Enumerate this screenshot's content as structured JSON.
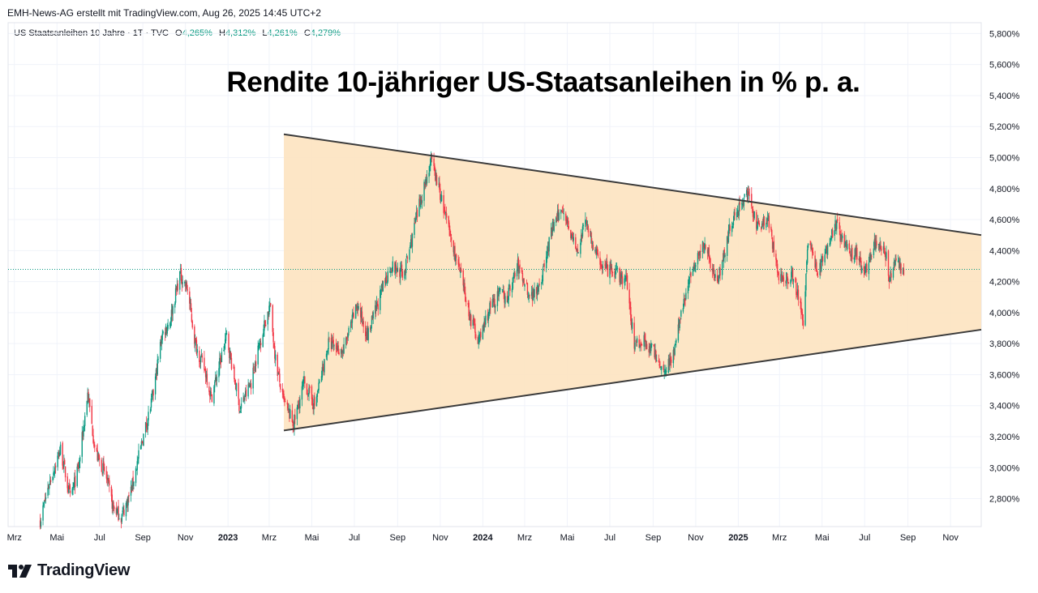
{
  "header": {
    "credit": "EMH-News-AG erstellt mit TradingView.com, Aug 26, 2025 14:45 UTC+2"
  },
  "legend": {
    "symbol": "US Staatsanleihen 10 Jahre · 1T · TVC",
    "o_label": "O",
    "o_value": "4,265%",
    "h_label": "H",
    "h_value": "4,312%",
    "l_label": "L",
    "l_value": "4,261%",
    "c_label": "C",
    "c_value": "4,279%"
  },
  "brand": {
    "name": "TradingView",
    "icon": "tradingview-logo-icon"
  },
  "colors": {
    "up": "#089981",
    "down": "#f23645",
    "triangle_fill": "#fde3c0",
    "trend_line": "#3a3a3a",
    "last_price_line": "#089981"
  },
  "chart_data": {
    "type": "candlestick",
    "title": "Rendite 10-jähriger US-Staatsanleihen in % p. a.",
    "ylabel": "%",
    "ylim": [
      2.62,
      5.87
    ],
    "y_ticks": [
      2.8,
      3.0,
      3.2,
      3.4,
      3.6,
      3.8,
      4.0,
      4.2,
      4.4,
      4.6,
      4.8,
      5.0,
      5.2,
      5.4,
      5.6,
      5.8
    ],
    "y_tick_labels": [
      "2,800%",
      "3,000%",
      "3,200%",
      "3,400%",
      "3,600%",
      "3,800%",
      "4,000%",
      "4,200%",
      "4,400%",
      "4,600%",
      "4,800%",
      "5,000%",
      "5,200%",
      "5,400%",
      "5,600%",
      "5,800%"
    ],
    "x_range": [
      "2022-02-20",
      "2025-12-15"
    ],
    "x_ticks": [
      {
        "date": "2022-03-01",
        "label": "Mrz",
        "bold": false
      },
      {
        "date": "2022-05-01",
        "label": "Mai",
        "bold": false
      },
      {
        "date": "2022-07-01",
        "label": "Jul",
        "bold": false
      },
      {
        "date": "2022-09-01",
        "label": "Sep",
        "bold": false
      },
      {
        "date": "2022-11-01",
        "label": "Nov",
        "bold": false
      },
      {
        "date": "2023-01-01",
        "label": "2023",
        "bold": true
      },
      {
        "date": "2023-03-01",
        "label": "Mrz",
        "bold": false
      },
      {
        "date": "2023-05-01",
        "label": "Mai",
        "bold": false
      },
      {
        "date": "2023-07-01",
        "label": "Jul",
        "bold": false
      },
      {
        "date": "2023-09-01",
        "label": "Sep",
        "bold": false
      },
      {
        "date": "2023-11-01",
        "label": "Nov",
        "bold": false
      },
      {
        "date": "2024-01-01",
        "label": "2024",
        "bold": true
      },
      {
        "date": "2024-03-01",
        "label": "Mrz",
        "bold": false
      },
      {
        "date": "2024-05-01",
        "label": "Mai",
        "bold": false
      },
      {
        "date": "2024-07-01",
        "label": "Jul",
        "bold": false
      },
      {
        "date": "2024-09-01",
        "label": "Sep",
        "bold": false
      },
      {
        "date": "2024-11-01",
        "label": "Nov",
        "bold": false
      },
      {
        "date": "2025-01-01",
        "label": "2025",
        "bold": true
      },
      {
        "date": "2025-03-01",
        "label": "Mrz",
        "bold": false
      },
      {
        "date": "2025-05-01",
        "label": "Mai",
        "bold": false
      },
      {
        "date": "2025-07-01",
        "label": "Jul",
        "bold": false
      },
      {
        "date": "2025-09-01",
        "label": "Sep",
        "bold": false
      },
      {
        "date": "2025-11-01",
        "label": "Nov",
        "bold": false
      }
    ],
    "series": [
      {
        "name": "US Staatsanleihen 10 Jahre close (approx. trajectory)",
        "points": [
          [
            "2022-04-07",
            2.66
          ],
          [
            "2022-04-20",
            2.9
          ],
          [
            "2022-05-06",
            3.12
          ],
          [
            "2022-05-20",
            2.8
          ],
          [
            "2022-06-01",
            3.0
          ],
          [
            "2022-06-14",
            3.48
          ],
          [
            "2022-06-25",
            3.1
          ],
          [
            "2022-07-10",
            2.95
          ],
          [
            "2022-07-20",
            2.75
          ],
          [
            "2022-08-01",
            2.68
          ],
          [
            "2022-08-15",
            2.85
          ],
          [
            "2022-08-30",
            3.15
          ],
          [
            "2022-09-15",
            3.45
          ],
          [
            "2022-09-28",
            3.85
          ],
          [
            "2022-10-10",
            3.95
          ],
          [
            "2022-10-24",
            4.25
          ],
          [
            "2022-11-04",
            4.15
          ],
          [
            "2022-11-15",
            3.8
          ],
          [
            "2022-12-01",
            3.6
          ],
          [
            "2022-12-08",
            3.45
          ],
          [
            "2022-12-30",
            3.85
          ],
          [
            "2023-01-18",
            3.38
          ],
          [
            "2023-02-03",
            3.55
          ],
          [
            "2023-02-15",
            3.8
          ],
          [
            "2023-03-02",
            4.05
          ],
          [
            "2023-03-10",
            3.7
          ],
          [
            "2023-03-20",
            3.45
          ],
          [
            "2023-04-05",
            3.28
          ],
          [
            "2023-04-20",
            3.55
          ],
          [
            "2023-05-05",
            3.4
          ],
          [
            "2023-05-25",
            3.8
          ],
          [
            "2023-06-15",
            3.75
          ],
          [
            "2023-07-05",
            4.05
          ],
          [
            "2023-07-20",
            3.85
          ],
          [
            "2023-08-10",
            4.15
          ],
          [
            "2023-08-22",
            4.3
          ],
          [
            "2023-09-10",
            4.25
          ],
          [
            "2023-09-25",
            4.55
          ],
          [
            "2023-10-05",
            4.75
          ],
          [
            "2023-10-19",
            4.98
          ],
          [
            "2023-10-30",
            4.8
          ],
          [
            "2023-11-15",
            4.5
          ],
          [
            "2023-12-01",
            4.22
          ],
          [
            "2023-12-15",
            3.95
          ],
          [
            "2023-12-27",
            3.82
          ],
          [
            "2024-01-10",
            4.02
          ],
          [
            "2024-01-25",
            4.12
          ],
          [
            "2024-02-05",
            4.1
          ],
          [
            "2024-02-20",
            4.3
          ],
          [
            "2024-03-10",
            4.1
          ],
          [
            "2024-03-25",
            4.22
          ],
          [
            "2024-04-10",
            4.55
          ],
          [
            "2024-04-25",
            4.68
          ],
          [
            "2024-05-15",
            4.38
          ],
          [
            "2024-05-28",
            4.6
          ],
          [
            "2024-06-10",
            4.38
          ],
          [
            "2024-06-25",
            4.28
          ],
          [
            "2024-07-10",
            4.25
          ],
          [
            "2024-07-25",
            4.2
          ],
          [
            "2024-08-05",
            3.8
          ],
          [
            "2024-08-20",
            3.82
          ],
          [
            "2024-09-05",
            3.72
          ],
          [
            "2024-09-16",
            3.62
          ],
          [
            "2024-10-01",
            3.75
          ],
          [
            "2024-10-15",
            4.08
          ],
          [
            "2024-11-01",
            4.35
          ],
          [
            "2024-11-15",
            4.45
          ],
          [
            "2024-12-01",
            4.18
          ],
          [
            "2024-12-20",
            4.55
          ],
          [
            "2025-01-13",
            4.78
          ],
          [
            "2025-01-28",
            4.55
          ],
          [
            "2025-02-12",
            4.62
          ],
          [
            "2025-03-01",
            4.2
          ],
          [
            "2025-03-20",
            4.25
          ],
          [
            "2025-04-04",
            3.95
          ],
          [
            "2025-04-11",
            4.48
          ],
          [
            "2025-04-25",
            4.25
          ],
          [
            "2025-05-20",
            4.58
          ],
          [
            "2025-06-05",
            4.4
          ],
          [
            "2025-06-20",
            4.38
          ],
          [
            "2025-07-01",
            4.25
          ],
          [
            "2025-07-15",
            4.45
          ],
          [
            "2025-07-31",
            4.38
          ],
          [
            "2025-08-05",
            4.2
          ],
          [
            "2025-08-15",
            4.32
          ],
          [
            "2025-08-26",
            4.28
          ]
        ]
      }
    ],
    "last_value": 4.279,
    "triangle": {
      "upper_line": {
        "from": [
          "2023-03-22",
          5.15
        ],
        "to": [
          "2025-12-15",
          4.5
        ]
      },
      "lower_line": {
        "from": [
          "2023-03-22",
          3.24
        ],
        "to": [
          "2025-12-15",
          3.89
        ]
      }
    }
  }
}
